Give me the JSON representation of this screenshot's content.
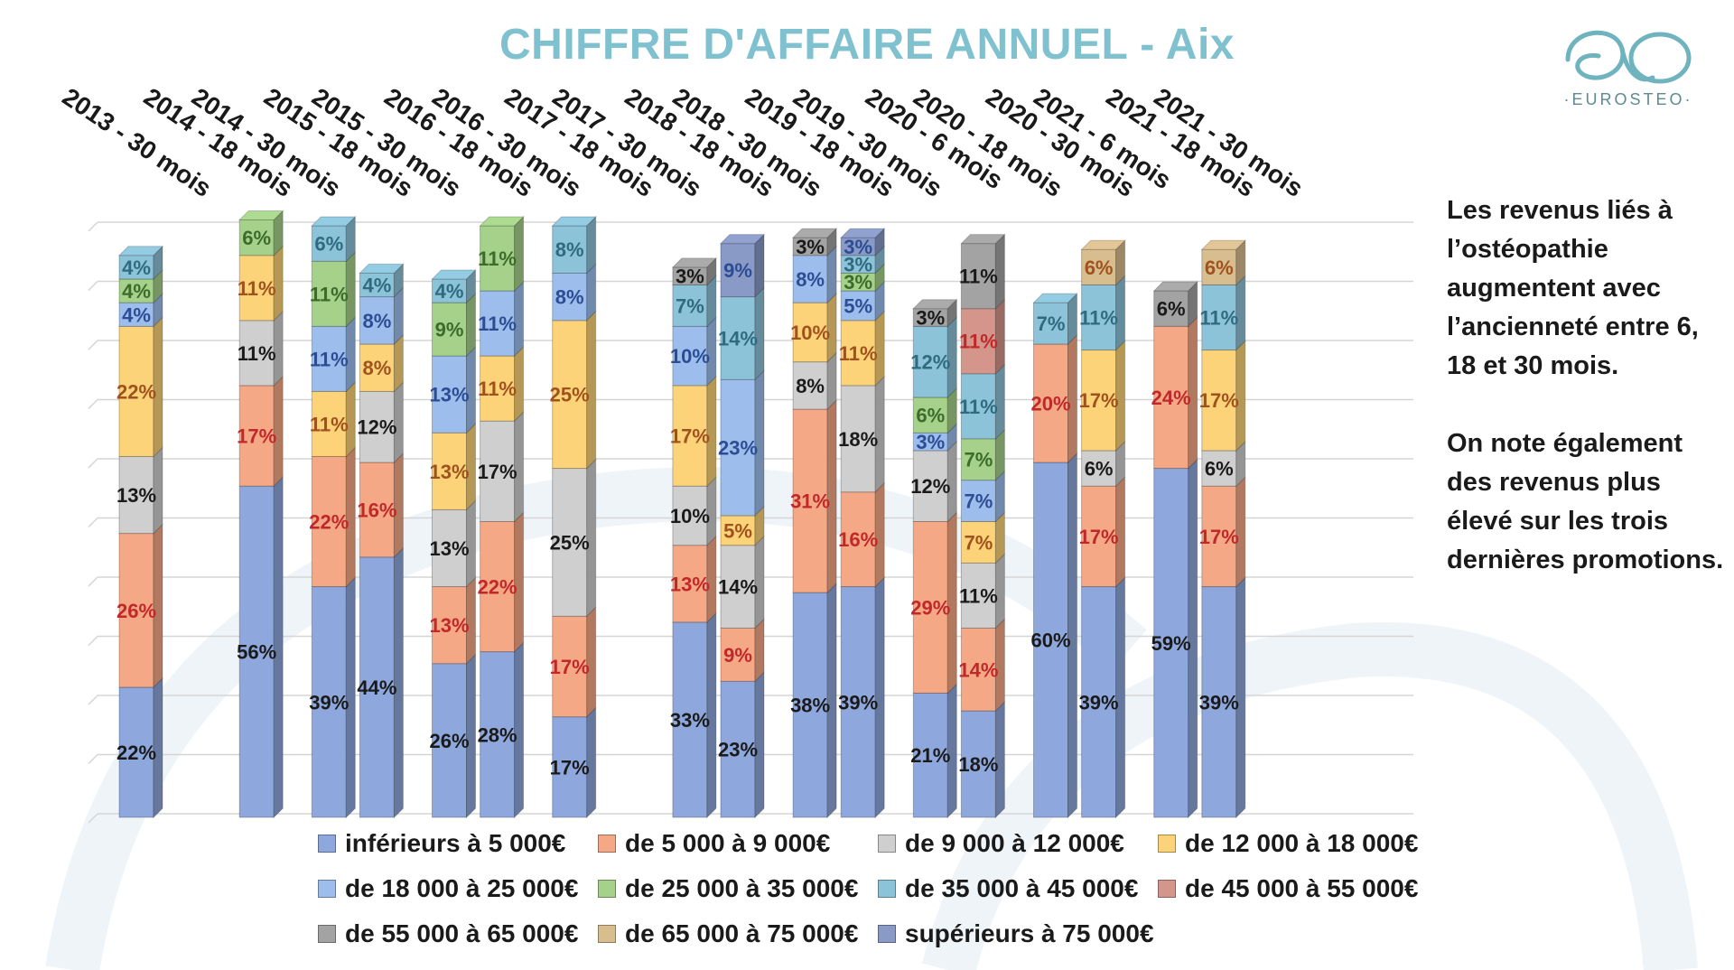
{
  "title": "CHIFFRE D'AFFAIRE ANNUEL - Aix",
  "logo": {
    "name": "EUROSTEO",
    "color": "#6fb3bf"
  },
  "side_text": {
    "p1": "Les revenus liés à l’ostéopathie augmentent avec l’ancienneté entre 6, 18 et 30 mois.",
    "p2": "On note également des revenus plus élevé sur les trois dernières promotions."
  },
  "chart_data": {
    "type": "bar",
    "stacked": true,
    "ylim": [
      0,
      100
    ],
    "grid": true,
    "legend_position": "bottom",
    "categories": [
      "2013 - 30 mois",
      "2014 - 18 mois",
      "2014 - 30 mois",
      "2015 - 18 mois",
      "2015 - 30 mois",
      "2016 - 18 mois",
      "2016 - 30 mois",
      "2017 - 18 mois",
      "2017 - 30 mois",
      "2018 - 18 mois",
      "2018 - 30 mois",
      "2019 - 18 mois",
      "2019 - 30 mois",
      "2020 - 6 mois",
      "2020 - 18 mois",
      "2020 - 30 mois",
      "2021 - 6 mois",
      "2021 - 18 mois",
      "2021 - 30 mois"
    ],
    "series": [
      {
        "name": "inférieurs à 5 000€",
        "color": "#8ea7dc",
        "label_color": "#1a1a1a"
      },
      {
        "name": "de 5 000 à 9 000€",
        "color": "#f4a886",
        "label_color": "#c0282a"
      },
      {
        "name": "de 9 000 à 12 000€",
        "color": "#cfcfcf",
        "label_color": "#1a1a1a"
      },
      {
        "name": "de 12 000 à 18 000€",
        "color": "#fcd378",
        "label_color": "#a0521e"
      },
      {
        "name": "de 18 000 à 25 000€",
        "color": "#9dbeec",
        "label_color": "#2c4d93"
      },
      {
        "name": "de 25 000 à 35 000€",
        "color": "#a5d18b",
        "label_color": "#3c6b2a"
      },
      {
        "name": "de 35 000 à 45 000€",
        "color": "#8dc3d8",
        "label_color": "#2f6a80"
      },
      {
        "name": "de 45 000 à 55 000€",
        "color": "#d4958a",
        "label_color": "#c0282a"
      },
      {
        "name": "de 55 000 à 65 000€",
        "color": "#a3a3a3",
        "label_color": "#1a1a1a"
      },
      {
        "name": "de 65 000 à 75 000€",
        "color": "#d8bd8f",
        "label_color": "#a0521e"
      },
      {
        "name": "supérieurs à 75 000€",
        "color": "#8a9ac7",
        "label_color": "#2c4d93"
      }
    ],
    "bars": [
      {
        "category": "2013 - 30 mois",
        "values": [
          22,
          26,
          13,
          22,
          4,
          4,
          4,
          0,
          0,
          0,
          0
        ]
      },
      {
        "category": "2014 - 30 mois",
        "values": [
          56,
          17,
          11,
          11,
          0,
          6,
          0,
          0,
          0,
          0,
          0
        ]
      },
      {
        "category": "2015 - 18 mois",
        "values": [
          39,
          22,
          0,
          11,
          11,
          11,
          6,
          0,
          0,
          0,
          0
        ]
      },
      {
        "category": "2015 - 30 mois",
        "values": [
          44,
          16,
          12,
          8,
          8,
          0,
          4,
          0,
          0,
          0,
          0
        ]
      },
      {
        "category": "2016 - 18 mois",
        "values": [
          26,
          13,
          13,
          13,
          13,
          9,
          4,
          0,
          0,
          0,
          0
        ]
      },
      {
        "category": "2016 - 30 mois",
        "values": [
          28,
          22,
          17,
          11,
          11,
          11,
          0,
          0,
          0,
          0,
          0
        ]
      },
      {
        "category": "2017 - 18 mois",
        "values": [
          17,
          17,
          25,
          25,
          8,
          0,
          8,
          0,
          0,
          0,
          0
        ]
      },
      {
        "category": "2018 - 18 mois",
        "values": [
          33,
          13,
          10,
          17,
          10,
          0,
          7,
          0,
          3,
          0,
          0
        ]
      },
      {
        "category": "2018 - 30 mois",
        "values": [
          23,
          9,
          14,
          5,
          23,
          0,
          14,
          0,
          0,
          0,
          9
        ]
      },
      {
        "category": "2019 - 18 mois",
        "values": [
          38,
          31,
          8,
          10,
          8,
          0,
          0,
          0,
          3,
          0,
          0
        ]
      },
      {
        "category": "2019 - 30 mois",
        "values": [
          39,
          16,
          18,
          11,
          5,
          3,
          3,
          0,
          0,
          0,
          3
        ]
      },
      {
        "category": "2020 - 6 mois",
        "values": [
          21,
          29,
          12,
          0,
          3,
          6,
          12,
          0,
          3,
          0,
          0
        ]
      },
      {
        "category": "2020 - 18 mois",
        "values": [
          18,
          14,
          11,
          7,
          7,
          7,
          11,
          11,
          11,
          0,
          0
        ]
      },
      {
        "category": "2020 - 30 mois",
        "values": [
          60,
          20,
          0,
          0,
          0,
          0,
          7,
          0,
          0,
          0,
          0
        ]
      },
      {
        "category": "2021 - 6 mois",
        "values": [
          39,
          17,
          6,
          17,
          0,
          0,
          11,
          0,
          0,
          6,
          0
        ]
      },
      {
        "category": "2021 - 18 mois",
        "values": [
          59,
          24,
          0,
          0,
          0,
          0,
          0,
          0,
          6,
          0,
          0
        ]
      },
      {
        "category": "2021 - 30 mois",
        "values": [
          39,
          17,
          6,
          17,
          0,
          0,
          11,
          0,
          0,
          6,
          0
        ]
      }
    ],
    "labels_shown_on_chart": "percent values printed inside each segment"
  },
  "legend": {
    "items": [
      "inférieurs à 5 000€",
      "de 5 000 à 9 000€",
      "de 9 000 à 12 000€",
      "de 12 000 à 18 000€",
      "de 18 000 à 25 000€",
      "de 25 000 à 35 000€",
      "de 35 000 à 45 000€",
      "de 45 000 à 55 000€",
      "de 55 000 à 65 000€",
      "de 65 000 à 75 000€",
      "supérieurs à 75 000€"
    ]
  }
}
